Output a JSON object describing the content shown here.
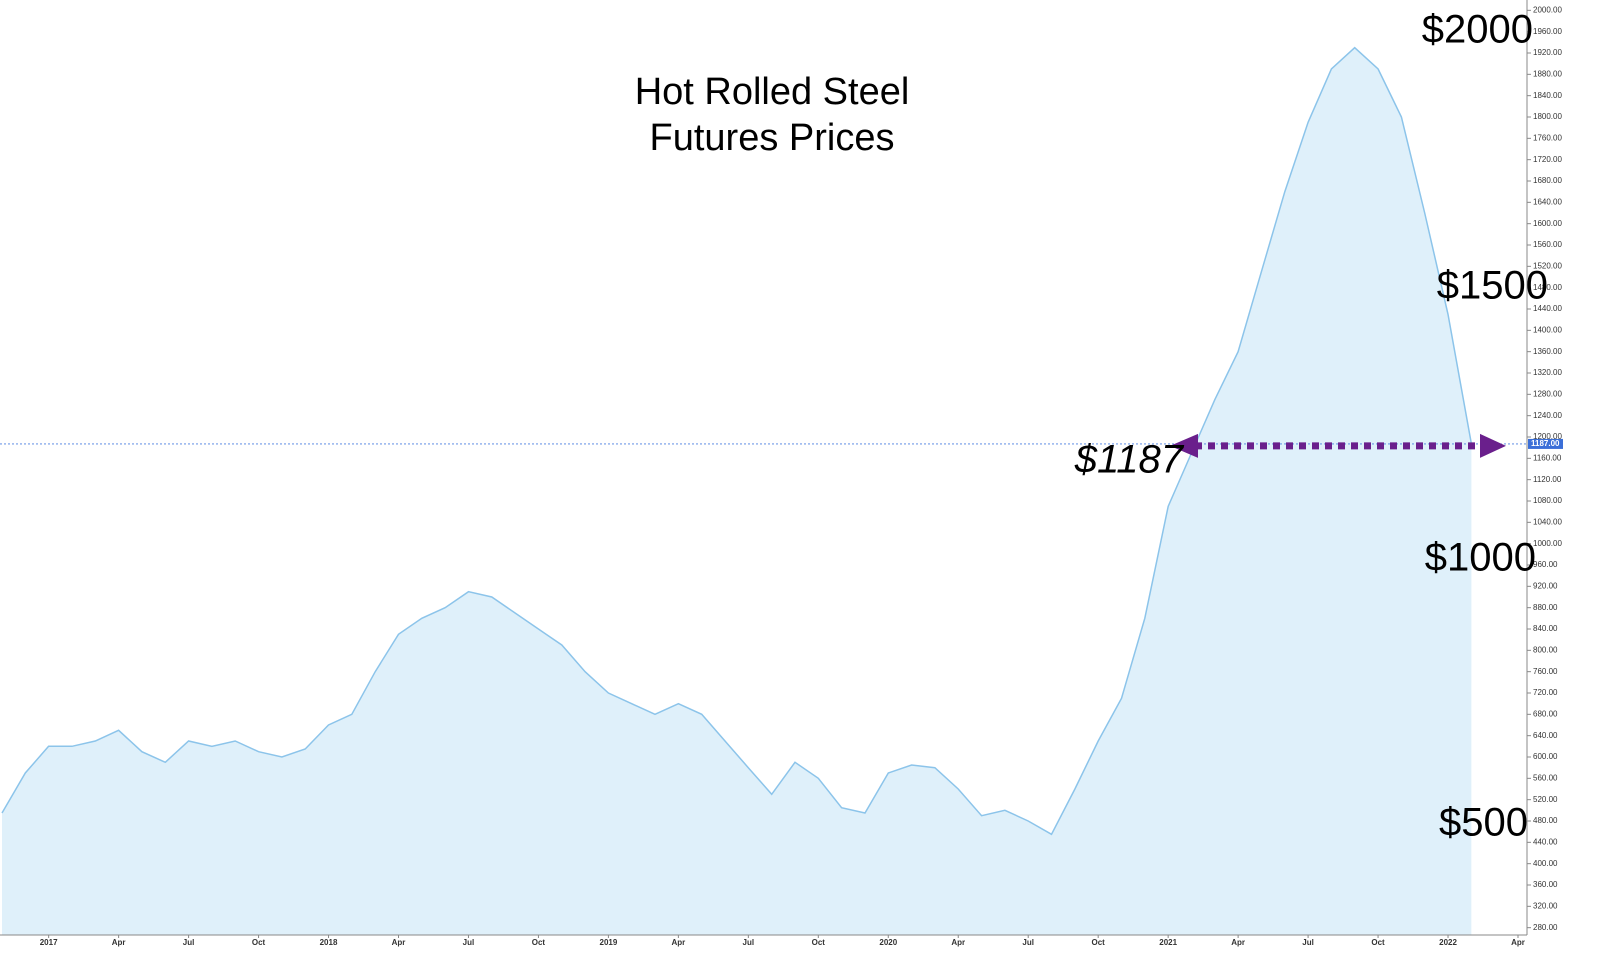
{
  "chart_data": {
    "type": "area",
    "title": [
      "Hot Rolled Steel",
      "Futures Prices"
    ],
    "x": [
      "2016-11",
      "2016-12",
      "2017-01",
      "2017-02",
      "2017-03",
      "2017-04",
      "2017-05",
      "2017-06",
      "2017-07",
      "2017-08",
      "2017-09",
      "2017-10",
      "2017-11",
      "2017-12",
      "2018-01",
      "2018-02",
      "2018-03",
      "2018-04",
      "2018-05",
      "2018-06",
      "2018-07",
      "2018-08",
      "2018-09",
      "2018-10",
      "2018-11",
      "2018-12",
      "2019-01",
      "2019-02",
      "2019-03",
      "2019-04",
      "2019-05",
      "2019-06",
      "2019-07",
      "2019-08",
      "2019-09",
      "2019-10",
      "2019-11",
      "2019-12",
      "2020-01",
      "2020-02",
      "2020-03",
      "2020-04",
      "2020-05",
      "2020-06",
      "2020-07",
      "2020-08",
      "2020-09",
      "2020-10",
      "2020-11",
      "2020-12",
      "2021-01",
      "2021-02",
      "2021-03",
      "2021-04",
      "2021-05",
      "2021-06",
      "2021-07",
      "2021-08",
      "2021-09",
      "2021-10",
      "2021-11",
      "2021-12",
      "2022-01",
      "2022-02"
    ],
    "series": [
      {
        "name": "Hot Rolled Steel",
        "color": "#8cc4ea",
        "fill": "#dff0fa",
        "values": [
          495,
          570,
          620,
          620,
          630,
          650,
          610,
          590,
          630,
          620,
          630,
          610,
          600,
          615,
          660,
          680,
          760,
          830,
          860,
          880,
          910,
          900,
          870,
          840,
          810,
          760,
          720,
          700,
          680,
          700,
          680,
          630,
          580,
          530,
          590,
          560,
          505,
          495,
          570,
          585,
          580,
          540,
          490,
          500,
          480,
          455,
          540,
          630,
          710,
          860,
          1070,
          1170,
          1270,
          1360,
          1510,
          1660,
          1790,
          1890,
          1930,
          1890,
          1800,
          1620,
          1430,
          1187
        ]
      }
    ],
    "xlim": [
      "2016-11",
      "2022-04"
    ],
    "xticks": [
      {
        "value": "2017-01",
        "label": "2017"
      },
      {
        "value": "2017-04",
        "label": "Apr"
      },
      {
        "value": "2017-07",
        "label": "Jul"
      },
      {
        "value": "2017-10",
        "label": "Oct"
      },
      {
        "value": "2018-01",
        "label": "2018"
      },
      {
        "value": "2018-04",
        "label": "Apr"
      },
      {
        "value": "2018-07",
        "label": "Jul"
      },
      {
        "value": "2018-10",
        "label": "Oct"
      },
      {
        "value": "2019-01",
        "label": "2019"
      },
      {
        "value": "2019-04",
        "label": "Apr"
      },
      {
        "value": "2019-07",
        "label": "Jul"
      },
      {
        "value": "2019-10",
        "label": "Oct"
      },
      {
        "value": "2020-01",
        "label": "2020"
      },
      {
        "value": "2020-04",
        "label": "Apr"
      },
      {
        "value": "2020-07",
        "label": "Jul"
      },
      {
        "value": "2020-10",
        "label": "Oct"
      },
      {
        "value": "2021-01",
        "label": "2021"
      },
      {
        "value": "2021-04",
        "label": "Apr"
      },
      {
        "value": "2021-07",
        "label": "Jul"
      },
      {
        "value": "2021-10",
        "label": "Oct"
      },
      {
        "value": "2022-01",
        "label": "2022"
      },
      {
        "value": "2022-04",
        "label": "Apr"
      }
    ],
    "ylim": [
      270,
      2025
    ],
    "yticks": [
      {
        "value": 280,
        "label": "280.00"
      },
      {
        "value": 320,
        "label": "320.00"
      },
      {
        "value": 360,
        "label": "360.00"
      },
      {
        "value": 400,
        "label": "400.00"
      },
      {
        "value": 440,
        "label": "440.00"
      },
      {
        "value": 480,
        "label": "480.00"
      },
      {
        "value": 520,
        "label": "520.00"
      },
      {
        "value": 560,
        "label": "560.00"
      },
      {
        "value": 600,
        "label": "600.00"
      },
      {
        "value": 640,
        "label": "640.00"
      },
      {
        "value": 680,
        "label": "680.00"
      },
      {
        "value": 720,
        "label": "720.00"
      },
      {
        "value": 760,
        "label": "760.00"
      },
      {
        "value": 800,
        "label": "800.00"
      },
      {
        "value": 840,
        "label": "840.00"
      },
      {
        "value": 880,
        "label": "880.00"
      },
      {
        "value": 920,
        "label": "920.00"
      },
      {
        "value": 960,
        "label": "960.00"
      },
      {
        "value": 1000,
        "label": "1000.00"
      },
      {
        "value": 1040,
        "label": "1040.00"
      },
      {
        "value": 1080,
        "label": "1080.00"
      },
      {
        "value": 1120,
        "label": "1120.00"
      },
      {
        "value": 1160,
        "label": "1160.00"
      },
      {
        "value": 1200,
        "label": "1200.00"
      },
      {
        "value": 1240,
        "label": "1240.00"
      },
      {
        "value": 1280,
        "label": "1280.00"
      },
      {
        "value": 1320,
        "label": "1320.00"
      },
      {
        "value": 1360,
        "label": "1360.00"
      },
      {
        "value": 1400,
        "label": "1400.00"
      },
      {
        "value": 1440,
        "label": "1440.00"
      },
      {
        "value": 1480,
        "label": "1480.00"
      },
      {
        "value": 1520,
        "label": "1520.00"
      },
      {
        "value": 1560,
        "label": "1560.00"
      },
      {
        "value": 1600,
        "label": "1600.00"
      },
      {
        "value": 1640,
        "label": "1640.00"
      },
      {
        "value": 1680,
        "label": "1680.00"
      },
      {
        "value": 1720,
        "label": "1720.00"
      },
      {
        "value": 1760,
        "label": "1760.00"
      },
      {
        "value": 1800,
        "label": "1800.00"
      },
      {
        "value": 1840,
        "label": "1840.00"
      },
      {
        "value": 1880,
        "label": "1880.00"
      },
      {
        "value": 1920,
        "label": "1920.00"
      },
      {
        "value": 1960,
        "label": "1960.00"
      },
      {
        "value": 2000,
        "label": "2000.00"
      }
    ],
    "last_price": {
      "value": 1187,
      "label": "1187.00"
    },
    "annotations": [
      "$2000",
      "$1500",
      "$1000",
      "$500",
      "$1187"
    ]
  }
}
